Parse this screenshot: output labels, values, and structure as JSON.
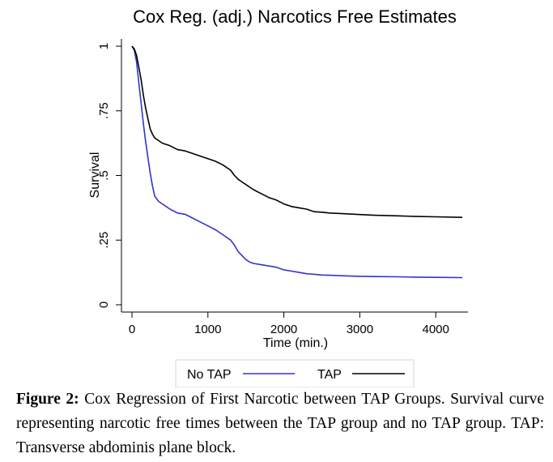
{
  "chart_data": {
    "type": "line",
    "title": "Cox Reg. (adj.) Narcotics Free Estimates",
    "xlabel": "Time (min.)",
    "ylabel": "Survival",
    "xlim": [
      0,
      4350
    ],
    "ylim": [
      0,
      1
    ],
    "xticks": [
      0,
      1000,
      2000,
      3000,
      4000
    ],
    "xtick_labels": [
      "0",
      "1000",
      "2000",
      "3000",
      "4000"
    ],
    "yticks": [
      0,
      0.25,
      0.5,
      0.75,
      1
    ],
    "ytick_labels": [
      "0",
      ".25",
      ".5",
      ".75",
      "1"
    ],
    "grid": false,
    "legend_position": "bottom",
    "series": [
      {
        "name": "No TAP",
        "color": "#3333cc",
        "x": [
          0,
          30,
          60,
          90,
          120,
          150,
          180,
          210,
          240,
          270,
          300,
          350,
          400,
          500,
          600,
          700,
          800,
          900,
          1000,
          1100,
          1200,
          1300,
          1350,
          1400,
          1450,
          1500,
          1550,
          1600,
          1700,
          1800,
          1900,
          2000,
          2100,
          2200,
          2300,
          2400,
          2500,
          2600,
          2800,
          3000,
          3200,
          3500,
          3700,
          4000,
          4350
        ],
        "y": [
          1.0,
          0.985,
          0.94,
          0.86,
          0.78,
          0.7,
          0.63,
          0.57,
          0.51,
          0.46,
          0.42,
          0.4,
          0.39,
          0.37,
          0.355,
          0.35,
          0.335,
          0.32,
          0.305,
          0.29,
          0.27,
          0.25,
          0.23,
          0.205,
          0.19,
          0.175,
          0.165,
          0.16,
          0.155,
          0.15,
          0.145,
          0.135,
          0.13,
          0.125,
          0.12,
          0.118,
          0.115,
          0.114,
          0.112,
          0.11,
          0.109,
          0.108,
          0.107,
          0.106,
          0.105
        ]
      },
      {
        "name": "TAP",
        "color": "#000000",
        "x": [
          0,
          30,
          60,
          90,
          120,
          150,
          180,
          210,
          240,
          270,
          300,
          350,
          400,
          500,
          600,
          700,
          800,
          900,
          1000,
          1100,
          1200,
          1300,
          1350,
          1400,
          1450,
          1500,
          1550,
          1600,
          1700,
          1800,
          1900,
          2000,
          2100,
          2200,
          2300,
          2400,
          2500,
          2600,
          2800,
          3000,
          3200,
          3500,
          3700,
          4000,
          4350
        ],
        "y": [
          1.0,
          0.99,
          0.965,
          0.92,
          0.87,
          0.81,
          0.76,
          0.72,
          0.68,
          0.66,
          0.645,
          0.635,
          0.625,
          0.615,
          0.6,
          0.595,
          0.585,
          0.575,
          0.565,
          0.555,
          0.54,
          0.52,
          0.5,
          0.485,
          0.475,
          0.465,
          0.455,
          0.445,
          0.43,
          0.415,
          0.405,
          0.39,
          0.38,
          0.375,
          0.37,
          0.36,
          0.358,
          0.355,
          0.352,
          0.349,
          0.346,
          0.344,
          0.342,
          0.34,
          0.338
        ]
      }
    ]
  },
  "caption": {
    "label": "Figure 2:",
    "text": "Cox Regression of First Narcotic between TAP Groups. Survival curve representing narcotic free times between the TAP group and no TAP group. TAP: Transverse abdominis plane block."
  }
}
